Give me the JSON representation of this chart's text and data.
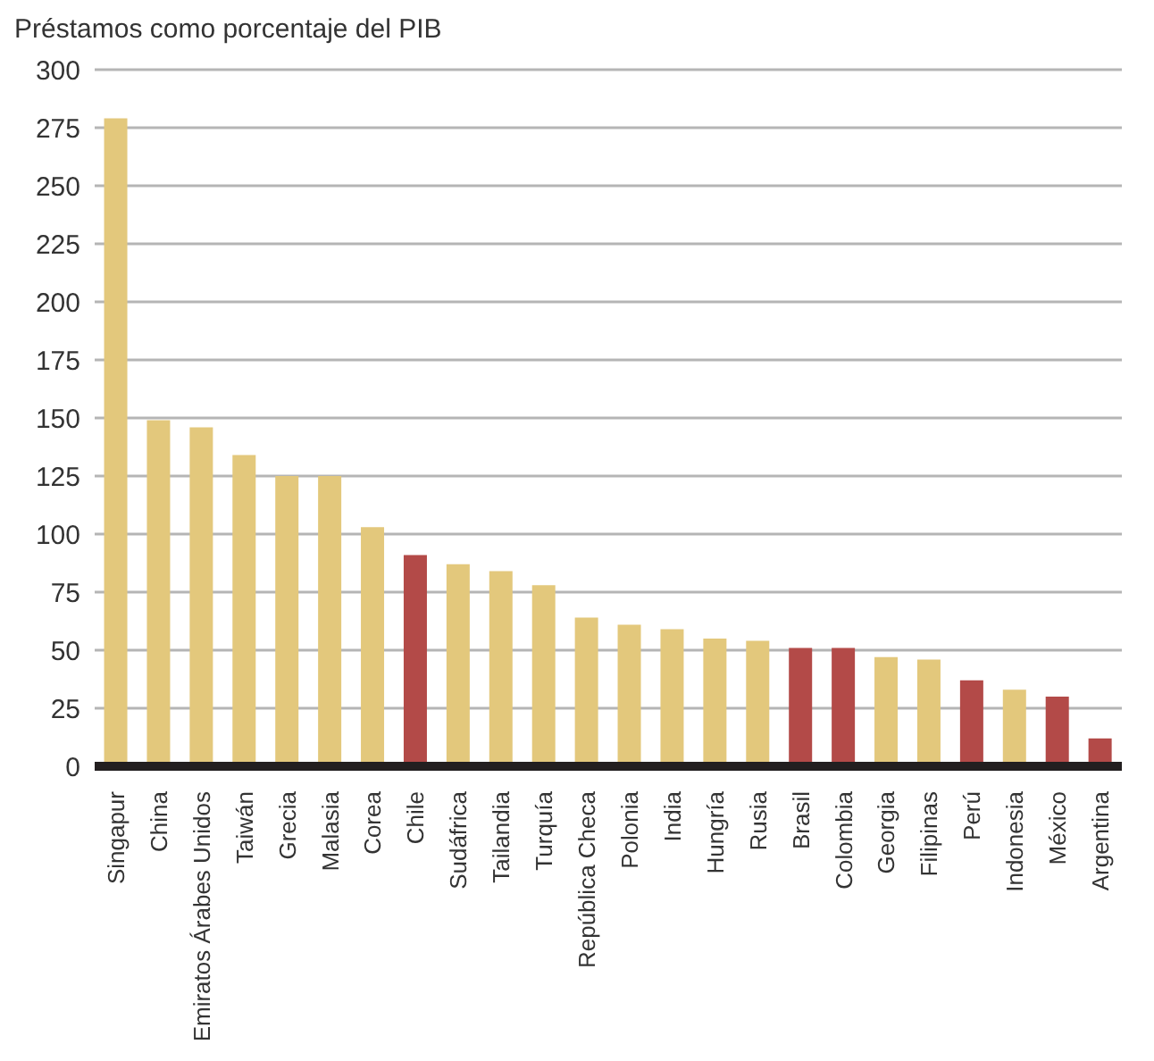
{
  "chart_data": {
    "type": "bar",
    "title": "Préstamos como porcentaje del PIB",
    "categories": [
      "Singapur",
      "China",
      "Emiratos Árabes Unidos",
      "Taiwán",
      "Grecia",
      "Malasia",
      "Corea",
      "Chile",
      "Sudáfrica",
      "Tailandia",
      "Turquía",
      "República Checa",
      "Polonia",
      "India",
      "Hungría",
      "Rusia",
      "Brasil",
      "Colombia",
      "Georgia",
      "Filipinas",
      "Perú",
      "Indonesia",
      "México",
      "Argentina"
    ],
    "values": [
      279,
      149,
      146,
      134,
      125,
      125,
      103,
      91,
      87,
      84,
      78,
      64,
      61,
      59,
      55,
      54,
      51,
      51,
      47,
      46,
      37,
      33,
      30,
      12
    ],
    "colors": [
      "#e3c87c",
      "#e3c87c",
      "#e3c87c",
      "#e3c87c",
      "#e3c87c",
      "#e3c87c",
      "#e3c87c",
      "#b34a48",
      "#e3c87c",
      "#e3c87c",
      "#e3c87c",
      "#e3c87c",
      "#e3c87c",
      "#e3c87c",
      "#e3c87c",
      "#e3c87c",
      "#b34a48",
      "#b34a48",
      "#e3c87c",
      "#e3c87c",
      "#b34a48",
      "#e3c87c",
      "#b34a48",
      "#b34a48"
    ],
    "ylim": [
      0,
      300
    ],
    "yticks": [
      0,
      25,
      50,
      75,
      100,
      125,
      150,
      175,
      200,
      225,
      250,
      275,
      300
    ],
    "grid": "y"
  }
}
